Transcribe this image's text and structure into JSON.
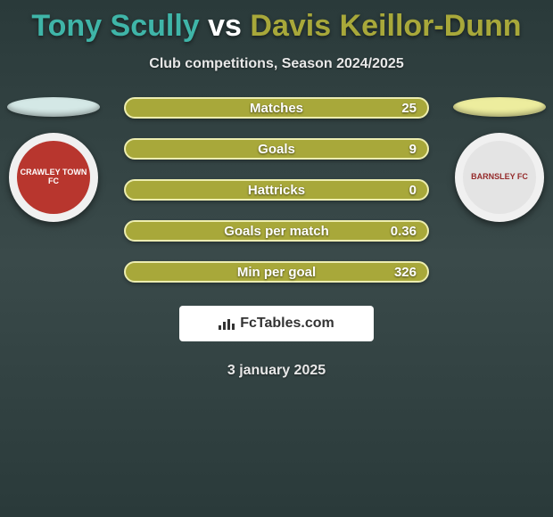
{
  "colors": {
    "player1": "#3fb5a8",
    "player2": "#a8a83a",
    "ellipse_left": "#d4e8e6",
    "ellipse_right": "#eded9e",
    "badge_left_outer": "#f0f0f0",
    "badge_left_inner": "#b8362e",
    "badge_right_outer": "#f0f0f0",
    "badge_right_inner": "#e4e4e4",
    "stat_row_bg": "#a8a83a",
    "stat_row_border": "#ededb0"
  },
  "title": {
    "player1": "Tony Scully",
    "vs": " vs ",
    "player2": "Davis Keillor-Dunn"
  },
  "subtitle": "Club competitions, Season 2024/2025",
  "stats": [
    {
      "label": "Matches",
      "value": "25"
    },
    {
      "label": "Goals",
      "value": "9"
    },
    {
      "label": "Hattricks",
      "value": "0"
    },
    {
      "label": "Goals per match",
      "value": "0.36"
    },
    {
      "label": "Min per goal",
      "value": "326"
    }
  ],
  "watermark": "FcTables.com",
  "date": "3 january 2025",
  "badges": {
    "left_text": "CRAWLEY TOWN FC",
    "right_text": "BARNSLEY FC"
  }
}
